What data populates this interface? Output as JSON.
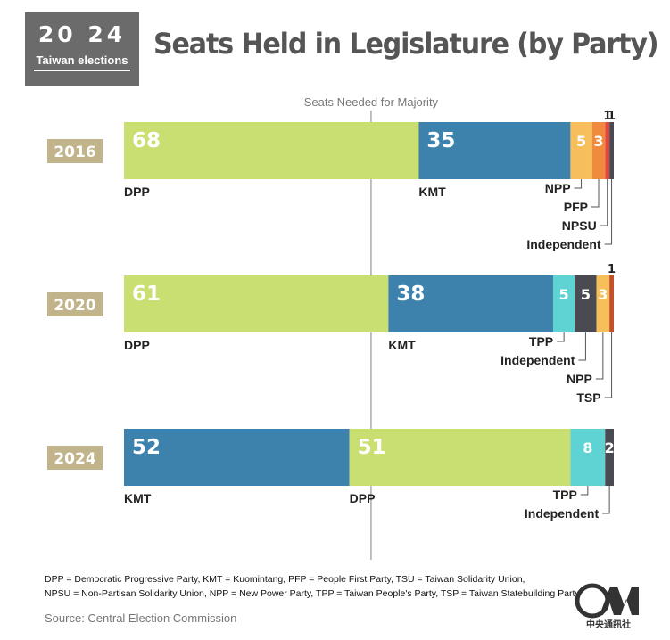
{
  "logo": {
    "year": "20 24",
    "subtitle": "Taiwan elections",
    "colors": {
      "bg": "#6b6b6b"
    }
  },
  "title": "Seats Held in Legislature (by Party)",
  "chart_data": {
    "type": "bar",
    "orientation": "horizontal-stacked",
    "total_seats": 113,
    "majority_label": "Seats Needed for Majority",
    "majority_seats": 57,
    "rows": [
      {
        "year": "2016",
        "segments": [
          {
            "party": "DPP",
            "value": 68,
            "color": "#c9df72"
          },
          {
            "party": "KMT",
            "value": 35,
            "color": "#3d82ad"
          },
          {
            "party": "NPP",
            "value": 5,
            "color": "#f7bf5c"
          },
          {
            "party": "PFP",
            "value": 3,
            "color": "#f08a3c"
          },
          {
            "party": "NPSU",
            "value": 1,
            "color": "#e2493f"
          },
          {
            "party": "Independent",
            "value": 1,
            "color": "#4a4a52"
          }
        ]
      },
      {
        "year": "2020",
        "segments": [
          {
            "party": "DPP",
            "value": 61,
            "color": "#c9df72"
          },
          {
            "party": "KMT",
            "value": 38,
            "color": "#3d82ad"
          },
          {
            "party": "TPP",
            "value": 5,
            "color": "#5fd3d3"
          },
          {
            "party": "Independent",
            "value": 5,
            "color": "#4a4a52"
          },
          {
            "party": "NPP",
            "value": 3,
            "color": "#f7bf5c"
          },
          {
            "party": "TSP",
            "value": 1,
            "color": "#c4502a"
          }
        ]
      },
      {
        "year": "2024",
        "segments": [
          {
            "party": "KMT",
            "value": 52,
            "color": "#3d82ad"
          },
          {
            "party": "DPP",
            "value": 51,
            "color": "#c9df72"
          },
          {
            "party": "TPP",
            "value": 8,
            "color": "#5fd3d3"
          },
          {
            "party": "Independent",
            "value": 2,
            "color": "#4a4a52"
          }
        ]
      }
    ],
    "year_badge_color": "#c2b48a"
  },
  "legend_line1": "DPP = Democratic Progressive Party, KMT = Kuomintang, PFP = People First Party, TSU = Taiwan Solidarity Union,",
  "legend_line2": "NPSU = Non-Partisan Solidarity Union, NPP = New Power Party, TPP = Taiwan People's Party, TSP = Taiwan Statebuilding Party",
  "source": "Source: Central Election Commission",
  "cna": {
    "mark": "CNA",
    "subtitle": "中央通訊社"
  }
}
